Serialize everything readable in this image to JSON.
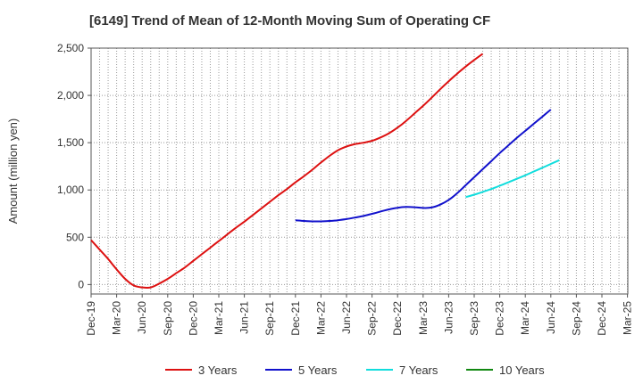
{
  "chart_data": {
    "type": "line",
    "title": "[6149]  Trend of Mean of 12-Month Moving Sum of Operating CF",
    "xlabel": "",
    "ylabel": "Amount (million yen)",
    "ylim": [
      -100,
      2500
    ],
    "yticks": [
      0,
      500,
      1000,
      1500,
      2000,
      2500
    ],
    "ytick_labels": [
      "0",
      "500",
      "1,000",
      "1,500",
      "2,000",
      "2,500"
    ],
    "x_tick_labels": [
      "Dec-19",
      "Mar-20",
      "Jun-20",
      "Sep-20",
      "Dec-20",
      "Mar-21",
      "Jun-21",
      "Sep-21",
      "Dec-21",
      "Mar-22",
      "Jun-22",
      "Sep-22",
      "Dec-22",
      "Mar-23",
      "Jun-23",
      "Sep-23",
      "Dec-23",
      "Mar-24",
      "Jun-24",
      "Sep-24",
      "Dec-24",
      "Mar-25"
    ],
    "grid": true,
    "legend_position": "bottom",
    "series": [
      {
        "name": "3 Years",
        "color": "#dd1111",
        "points": [
          [
            0,
            470
          ],
          [
            1,
            370
          ],
          [
            2,
            270
          ],
          [
            3,
            160
          ],
          [
            4,
            60
          ],
          [
            5,
            -10
          ],
          [
            6,
            -30
          ],
          [
            7,
            -30
          ],
          [
            8,
            10
          ],
          [
            9,
            60
          ],
          [
            10,
            120
          ],
          [
            11,
            180
          ],
          [
            12,
            250
          ],
          [
            13,
            320
          ],
          [
            14,
            390
          ],
          [
            15,
            460
          ],
          [
            16,
            530
          ],
          [
            17,
            600
          ],
          [
            18,
            665
          ],
          [
            19,
            735
          ],
          [
            20,
            805
          ],
          [
            21,
            875
          ],
          [
            22,
            945
          ],
          [
            23,
            1010
          ],
          [
            24,
            1080
          ],
          [
            25,
            1145
          ],
          [
            26,
            1215
          ],
          [
            27,
            1290
          ],
          [
            28,
            1360
          ],
          [
            29,
            1420
          ],
          [
            30,
            1460
          ],
          [
            31,
            1485
          ],
          [
            32,
            1500
          ],
          [
            33,
            1520
          ],
          [
            34,
            1555
          ],
          [
            35,
            1600
          ],
          [
            36,
            1660
          ],
          [
            37,
            1730
          ],
          [
            38,
            1810
          ],
          [
            39,
            1890
          ],
          [
            40,
            1975
          ],
          [
            41,
            2065
          ],
          [
            42,
            2150
          ],
          [
            43,
            2230
          ],
          [
            44,
            2305
          ],
          [
            45,
            2375
          ],
          [
            46,
            2440
          ]
        ]
      },
      {
        "name": "5 Years",
        "color": "#1111cc",
        "points": [
          [
            24,
            680
          ],
          [
            25,
            672
          ],
          [
            26,
            668
          ],
          [
            27,
            668
          ],
          [
            28,
            672
          ],
          [
            29,
            680
          ],
          [
            30,
            692
          ],
          [
            31,
            708
          ],
          [
            32,
            725
          ],
          [
            33,
            748
          ],
          [
            34,
            772
          ],
          [
            35,
            795
          ],
          [
            36,
            812
          ],
          [
            37,
            820
          ],
          [
            38,
            818
          ],
          [
            39,
            810
          ],
          [
            40,
            815
          ],
          [
            41,
            845
          ],
          [
            42,
            895
          ],
          [
            43,
            965
          ],
          [
            44,
            1050
          ],
          [
            45,
            1135
          ],
          [
            46,
            1220
          ],
          [
            47,
            1305
          ],
          [
            48,
            1390
          ],
          [
            49,
            1470
          ],
          [
            50,
            1550
          ],
          [
            51,
            1625
          ],
          [
            52,
            1700
          ],
          [
            53,
            1775
          ],
          [
            54,
            1850
          ]
        ]
      },
      {
        "name": "7 Years",
        "color": "#11dddd",
        "points": [
          [
            44,
            925
          ],
          [
            45,
            950
          ],
          [
            46,
            980
          ],
          [
            47,
            1010
          ],
          [
            48,
            1045
          ],
          [
            49,
            1080
          ],
          [
            50,
            1118
          ],
          [
            51,
            1155
          ],
          [
            52,
            1195
          ],
          [
            53,
            1235
          ],
          [
            54,
            1275
          ],
          [
            55,
            1315
          ]
        ]
      },
      {
        "name": "10 Years",
        "color": "#118811",
        "points": []
      }
    ]
  }
}
